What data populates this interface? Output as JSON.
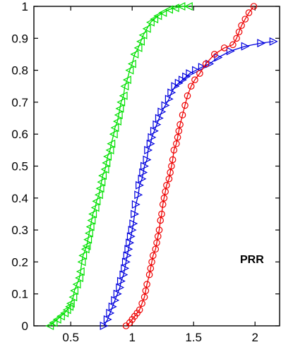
{
  "chart_data": {
    "type": "line",
    "title": "",
    "xlabel": "",
    "ylabel": "",
    "xlim": [
      0.2,
      2.2
    ],
    "ylim": [
      0,
      1
    ],
    "grid": false,
    "legend": "none",
    "x_ticks": [
      0.5,
      1,
      1.5,
      2
    ],
    "x_tick_labels": [
      "0.5",
      "1",
      "1.5",
      "2"
    ],
    "y_ticks": [
      0,
      0.1,
      0.2,
      0.3,
      0.4,
      0.5,
      0.6,
      0.7,
      0.8,
      0.9,
      1
    ],
    "y_tick_labels": [
      "0",
      "0.1",
      "0.2",
      "0.3",
      "0.4",
      "0.5",
      "0.6",
      "0.7",
      "0.8",
      "0.9",
      "1"
    ],
    "annotations": [
      {
        "text": "PRR",
        "x": 2.08,
        "y": 0.2
      }
    ],
    "series": [
      {
        "color": "#00e000",
        "marker": "triangle-left",
        "x": [
          0.33,
          0.36,
          0.39,
          0.42,
          0.45,
          0.47,
          0.49,
          0.5,
          0.52,
          0.53,
          0.55,
          0.57,
          0.58,
          0.59,
          0.6,
          0.62,
          0.63,
          0.64,
          0.65,
          0.66,
          0.67,
          0.68,
          0.7,
          0.71,
          0.73,
          0.74,
          0.75,
          0.76,
          0.78,
          0.79,
          0.8,
          0.82,
          0.83,
          0.85,
          0.86,
          0.88,
          0.89,
          0.9,
          0.91,
          0.93,
          0.94,
          0.96,
          0.98,
          1.0,
          1.02,
          1.05,
          1.07,
          1.09,
          1.12,
          1.15,
          1.18,
          1.21,
          1.25,
          1.3,
          1.35,
          1.4,
          1.46
        ],
        "y": [
          0.0,
          0.01,
          0.02,
          0.03,
          0.04,
          0.05,
          0.06,
          0.07,
          0.09,
          0.11,
          0.13,
          0.15,
          0.17,
          0.2,
          0.22,
          0.24,
          0.25,
          0.27,
          0.29,
          0.31,
          0.33,
          0.35,
          0.37,
          0.39,
          0.41,
          0.43,
          0.45,
          0.47,
          0.49,
          0.51,
          0.53,
          0.55,
          0.57,
          0.6,
          0.62,
          0.64,
          0.66,
          0.68,
          0.7,
          0.72,
          0.75,
          0.77,
          0.8,
          0.82,
          0.85,
          0.87,
          0.89,
          0.91,
          0.93,
          0.95,
          0.96,
          0.97,
          0.98,
          0.99,
          0.995,
          1.0,
          1.0
        ]
      },
      {
        "color": "#0000dd",
        "marker": "triangle-right",
        "x": [
          0.77,
          0.8,
          0.82,
          0.84,
          0.86,
          0.88,
          0.9,
          0.91,
          0.93,
          0.94,
          0.95,
          0.96,
          0.97,
          0.98,
          0.99,
          1.0,
          1.01,
          1.02,
          1.03,
          1.05,
          1.06,
          1.08,
          1.09,
          1.1,
          1.12,
          1.13,
          1.15,
          1.16,
          1.18,
          1.2,
          1.22,
          1.24,
          1.27,
          1.3,
          1.32,
          1.35,
          1.38,
          1.41,
          1.44,
          1.47,
          1.52,
          1.57,
          1.63,
          1.7,
          1.8,
          1.92,
          2.05,
          2.15
        ],
        "y": [
          0.0,
          0.02,
          0.04,
          0.06,
          0.08,
          0.1,
          0.12,
          0.14,
          0.16,
          0.18,
          0.2,
          0.22,
          0.24,
          0.26,
          0.28,
          0.3,
          0.32,
          0.35,
          0.38,
          0.41,
          0.44,
          0.46,
          0.48,
          0.5,
          0.52,
          0.55,
          0.57,
          0.59,
          0.61,
          0.63,
          0.65,
          0.67,
          0.69,
          0.71,
          0.73,
          0.75,
          0.76,
          0.77,
          0.78,
          0.79,
          0.8,
          0.81,
          0.82,
          0.84,
          0.86,
          0.875,
          0.885,
          0.89
        ]
      },
      {
        "color": "#ee0000",
        "marker": "circle",
        "x": [
          0.95,
          0.98,
          1.0,
          1.02,
          1.04,
          1.06,
          1.08,
          1.1,
          1.11,
          1.12,
          1.14,
          1.15,
          1.16,
          1.17,
          1.19,
          1.2,
          1.21,
          1.22,
          1.23,
          1.24,
          1.25,
          1.26,
          1.27,
          1.28,
          1.3,
          1.31,
          1.32,
          1.33,
          1.34,
          1.36,
          1.37,
          1.38,
          1.39,
          1.41,
          1.43,
          1.45,
          1.48,
          1.51,
          1.55,
          1.6,
          1.67,
          1.75,
          1.82,
          1.85,
          1.87,
          1.89,
          1.92,
          1.95,
          1.99
        ],
        "y": [
          0.0,
          0.01,
          0.02,
          0.03,
          0.04,
          0.05,
          0.07,
          0.09,
          0.11,
          0.13,
          0.16,
          0.18,
          0.2,
          0.22,
          0.24,
          0.26,
          0.28,
          0.3,
          0.33,
          0.35,
          0.38,
          0.4,
          0.42,
          0.44,
          0.46,
          0.48,
          0.5,
          0.52,
          0.55,
          0.57,
          0.59,
          0.61,
          0.63,
          0.66,
          0.69,
          0.72,
          0.75,
          0.77,
          0.79,
          0.82,
          0.85,
          0.87,
          0.88,
          0.9,
          0.92,
          0.94,
          0.96,
          0.98,
          1.0
        ]
      }
    ]
  }
}
